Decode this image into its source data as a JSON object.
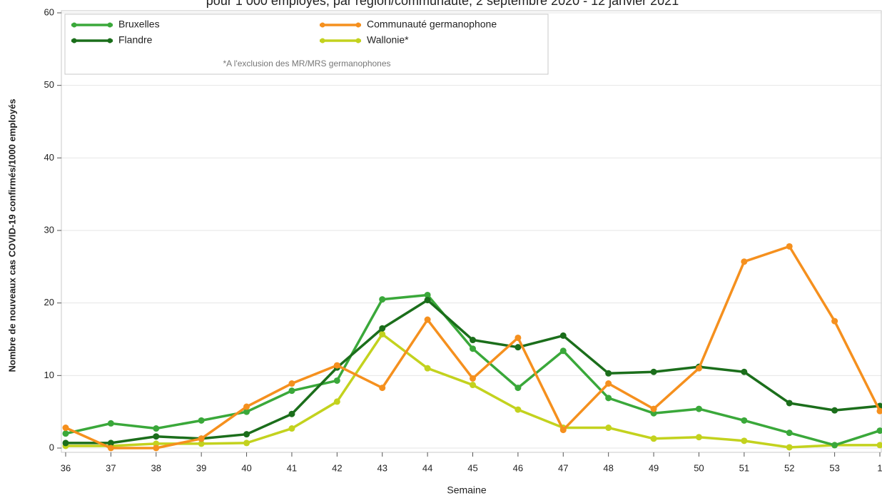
{
  "chart_data": {
    "type": "line",
    "title": "pour 1 000 employés, par région/communauté, 2 septembre 2020 - 12 janvier 2021",
    "x_label": "Semaine",
    "y_label": "Nombre de nouveaux cas COVID-19 confirmés/1000 employés",
    "legend_note": "*A l'exclusion des MR/MRS germanophones",
    "legend_position": "top-left",
    "grid": true,
    "categories": [
      "36",
      "37",
      "38",
      "39",
      "40",
      "41",
      "42",
      "43",
      "44",
      "45",
      "46",
      "47",
      "48",
      "49",
      "50",
      "51",
      "52",
      "53",
      "1"
    ],
    "ylim": [
      0,
      60
    ],
    "yticks": [
      0,
      10,
      20,
      30,
      40,
      50,
      60
    ],
    "series": [
      {
        "name": "Bruxelles",
        "color": "#3aa83a",
        "values": [
          2.0,
          3.4,
          2.7,
          3.8,
          5.0,
          7.9,
          9.3,
          20.5,
          21.1,
          13.7,
          8.3,
          13.4,
          6.9,
          4.8,
          5.4,
          3.8,
          2.1,
          0.4,
          2.4
        ]
      },
      {
        "name": "Flandre",
        "color": "#1b6e1b",
        "values": [
          0.7,
          0.7,
          1.6,
          1.3,
          1.9,
          4.7,
          11.1,
          16.5,
          20.4,
          14.9,
          13.9,
          15.5,
          10.3,
          10.5,
          11.2,
          10.5,
          6.2,
          5.2,
          5.8
        ]
      },
      {
        "name": "Communauté germanophone",
        "color": "#f5901e",
        "values": [
          2.8,
          0.0,
          0.0,
          1.3,
          5.7,
          8.9,
          11.4,
          8.3,
          17.7,
          9.6,
          15.2,
          2.5,
          8.9,
          5.4,
          11.0,
          25.7,
          27.8,
          17.5,
          5.1
        ]
      },
      {
        "name": "Wallonie*",
        "color": "#c3d21e",
        "values": [
          0.3,
          0.3,
          0.6,
          0.6,
          0.7,
          2.7,
          6.4,
          15.7,
          11.0,
          8.7,
          5.3,
          2.8,
          2.8,
          1.3,
          1.5,
          1.0,
          0.1,
          0.4,
          0.4
        ]
      }
    ]
  }
}
